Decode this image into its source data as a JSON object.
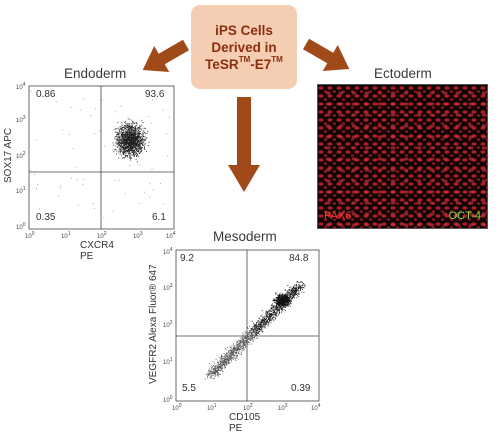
{
  "center": {
    "line1": "iPS Cells",
    "line2": "Derived in",
    "line3_prefix": "TeSR",
    "line3_sup1": "TM",
    "line3_mid": "-E7",
    "line3_sup2": "TM"
  },
  "labels": {
    "endoderm": "Endoderm",
    "ectoderm": "Ectoderm",
    "mesoderm": "Mesoderm"
  },
  "endoderm_plot": {
    "ylabel": "SOX17 APC",
    "xlabel": "CXCR4 PE",
    "q_tl": "0.86",
    "q_tr": "93.6",
    "q_bl": "0.35",
    "q_br": "6.1",
    "ticks": [
      "10",
      "10",
      "10",
      "10",
      "10"
    ],
    "tick_exp": [
      "0",
      "1",
      "2",
      "3",
      "4"
    ]
  },
  "mesoderm_plot": {
    "ylabel": "VEGFR2 Alexa Fluor® 647",
    "xlabel": "CD105 PE",
    "q_tl": "9.2",
    "q_tr": "84.8",
    "q_bl": "5.5",
    "q_br": "0.39",
    "ticks": [
      "10",
      "10",
      "10",
      "10",
      "10"
    ],
    "tick_exp": [
      "0",
      "1",
      "2",
      "3",
      "4"
    ]
  },
  "micrograph": {
    "marker1": "PAX6",
    "marker2": "OCT-4",
    "marker1_color": "#ff3434",
    "marker2_color": "#78e24a"
  },
  "colors": {
    "arrow": "#a04a19",
    "box": "#f5cdb3",
    "box_text": "#8a2f0c"
  }
}
